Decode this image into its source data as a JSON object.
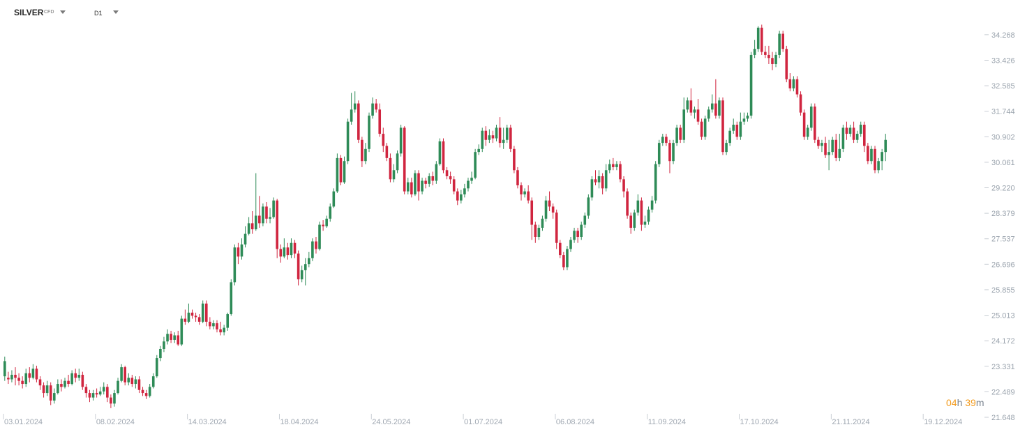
{
  "toolbar": {
    "symbol": "SILVER",
    "symbol_type": "CFD",
    "timeframe": "D1"
  },
  "timer": {
    "hours": "04",
    "hours_unit": "h",
    "minutes": "39",
    "minutes_unit": "m"
  },
  "colors": {
    "up": "#2e8b57",
    "down": "#d0253f",
    "axis_text": "#9aa3ad",
    "timer": "#f29a1c"
  },
  "chart_data": {
    "type": "candlestick",
    "timeframe": "D1",
    "ylim": [
      21.648,
      35.0
    ],
    "y_ticks": [
      "34.268",
      "33.426",
      "32.585",
      "31.744",
      "30.902",
      "30.061",
      "29.220",
      "28.379",
      "27.537",
      "26.696",
      "25.855",
      "25.013",
      "24.172",
      "23.331",
      "22.489",
      "21.648"
    ],
    "x_ticks": [
      "03.01.2024",
      "08.02.2024",
      "14.03.2024",
      "18.04.2024",
      "24.05.2024",
      "01.07.2024",
      "06.08.2024",
      "11.09.2024",
      "17.10.2024",
      "21.11.2024",
      "19.12.2024"
    ],
    "x_tick_positions": [
      0,
      26,
      52,
      78,
      104,
      130,
      156,
      182,
      208,
      234,
      260
    ],
    "candles": [
      [
        23.0,
        23.5,
        22.85,
        23.65
      ],
      [
        22.95,
        22.9,
        22.75,
        23.15
      ],
      [
        22.9,
        23.05,
        22.8,
        23.2
      ],
      [
        23.05,
        22.95,
        22.7,
        23.3
      ],
      [
        22.95,
        22.85,
        22.7,
        23.1
      ],
      [
        22.85,
        22.75,
        22.6,
        23.0
      ],
      [
        22.75,
        23.1,
        22.65,
        23.25
      ],
      [
        23.1,
        22.95,
        22.8,
        23.3
      ],
      [
        22.95,
        23.25,
        22.9,
        23.4
      ],
      [
        23.25,
        22.9,
        22.8,
        23.35
      ],
      [
        22.9,
        22.7,
        22.55,
        23.0
      ],
      [
        22.7,
        22.45,
        22.3,
        22.8
      ],
      [
        22.45,
        22.7,
        22.35,
        22.85
      ],
      [
        22.7,
        22.2,
        22.05,
        22.8
      ],
      [
        22.2,
        22.45,
        22.1,
        22.6
      ],
      [
        22.45,
        22.75,
        22.4,
        22.9
      ],
      [
        22.75,
        22.65,
        22.5,
        22.9
      ],
      [
        22.65,
        22.85,
        22.6,
        22.95
      ],
      [
        22.85,
        22.75,
        22.65,
        23.05
      ],
      [
        22.75,
        23.1,
        22.7,
        23.2
      ],
      [
        23.1,
        22.95,
        22.8,
        23.25
      ],
      [
        22.95,
        23.05,
        22.85,
        23.25
      ],
      [
        23.05,
        22.65,
        22.55,
        23.15
      ],
      [
        22.65,
        22.45,
        22.3,
        22.75
      ],
      [
        22.45,
        22.3,
        22.15,
        22.55
      ],
      [
        22.3,
        22.45,
        22.2,
        22.55
      ],
      [
        22.45,
        22.4,
        22.3,
        22.6
      ],
      [
        22.4,
        22.5,
        22.35,
        22.65
      ],
      [
        22.5,
        22.65,
        22.4,
        22.8
      ],
      [
        22.65,
        22.3,
        22.15,
        22.75
      ],
      [
        22.3,
        22.1,
        21.95,
        22.4
      ],
      [
        22.1,
        22.45,
        22.0,
        22.55
      ],
      [
        22.45,
        22.85,
        22.4,
        22.95
      ],
      [
        22.85,
        23.3,
        22.8,
        23.4
      ],
      [
        23.3,
        22.8,
        22.7,
        23.35
      ],
      [
        22.8,
        22.95,
        22.7,
        23.1
      ],
      [
        22.95,
        22.75,
        22.65,
        23.05
      ],
      [
        22.75,
        22.9,
        22.6,
        23.0
      ],
      [
        22.9,
        22.55,
        22.45,
        23.0
      ],
      [
        22.55,
        22.45,
        22.35,
        22.65
      ],
      [
        22.45,
        22.35,
        22.25,
        22.55
      ],
      [
        22.35,
        22.65,
        22.3,
        22.75
      ],
      [
        22.65,
        23.0,
        22.6,
        23.1
      ],
      [
        23.0,
        23.6,
        22.95,
        23.7
      ],
      [
        23.6,
        23.9,
        23.5,
        24.0
      ],
      [
        23.9,
        24.15,
        23.8,
        24.3
      ],
      [
        24.15,
        24.4,
        24.05,
        24.55
      ],
      [
        24.4,
        24.2,
        24.1,
        24.5
      ],
      [
        24.2,
        24.35,
        24.1,
        24.45
      ],
      [
        24.35,
        24.05,
        24.0,
        24.5
      ],
      [
        24.05,
        24.9,
        24.0,
        25.0
      ],
      [
        24.9,
        24.8,
        24.7,
        25.2
      ],
      [
        24.8,
        25.1,
        24.75,
        25.4
      ],
      [
        25.1,
        25.0,
        24.9,
        25.2
      ],
      [
        25.0,
        24.95,
        24.8,
        25.1
      ],
      [
        24.95,
        24.8,
        24.7,
        25.05
      ],
      [
        24.8,
        25.4,
        24.75,
        25.5
      ],
      [
        25.4,
        24.8,
        24.65,
        25.5
      ],
      [
        24.8,
        24.65,
        24.55,
        24.95
      ],
      [
        24.65,
        24.75,
        24.55,
        24.85
      ],
      [
        24.75,
        24.55,
        24.45,
        24.85
      ],
      [
        24.55,
        24.45,
        24.35,
        24.8
      ],
      [
        24.45,
        24.6,
        24.35,
        24.7
      ],
      [
        24.6,
        25.05,
        24.5,
        25.1
      ],
      [
        25.05,
        26.1,
        25.0,
        26.2
      ],
      [
        26.1,
        27.25,
        26.0,
        27.35
      ],
      [
        27.25,
        26.95,
        26.7,
        27.4
      ],
      [
        26.95,
        27.35,
        26.85,
        27.55
      ],
      [
        27.35,
        27.7,
        27.25,
        27.95
      ],
      [
        27.7,
        28.05,
        27.65,
        28.25
      ],
      [
        28.05,
        27.85,
        27.7,
        28.45
      ],
      [
        27.85,
        28.3,
        27.8,
        29.7
      ],
      [
        28.3,
        28.05,
        27.9,
        28.95
      ],
      [
        28.05,
        28.6,
        27.95,
        28.7
      ],
      [
        28.6,
        28.2,
        28.05,
        28.75
      ],
      [
        28.2,
        28.25,
        28.05,
        28.55
      ],
      [
        28.25,
        28.8,
        28.2,
        28.9
      ],
      [
        28.8,
        27.2,
        26.9,
        28.85
      ],
      [
        27.2,
        26.95,
        26.75,
        27.35
      ],
      [
        26.95,
        27.25,
        26.9,
        27.55
      ],
      [
        27.25,
        27.0,
        26.85,
        27.4
      ],
      [
        27.0,
        27.4,
        26.9,
        27.55
      ],
      [
        27.4,
        27.05,
        26.9,
        27.5
      ],
      [
        27.05,
        26.2,
        26.0,
        27.15
      ],
      [
        26.2,
        26.5,
        26.1,
        26.65
      ],
      [
        26.5,
        26.7,
        26.0,
        26.9
      ],
      [
        26.7,
        26.9,
        26.6,
        27.1
      ],
      [
        26.9,
        27.45,
        26.8,
        27.55
      ],
      [
        27.45,
        27.2,
        27.05,
        27.6
      ],
      [
        27.2,
        28.0,
        27.15,
        28.1
      ],
      [
        28.0,
        27.95,
        27.8,
        28.15
      ],
      [
        27.95,
        28.2,
        27.9,
        28.3
      ],
      [
        28.2,
        28.6,
        28.1,
        28.7
      ],
      [
        28.6,
        29.1,
        28.55,
        29.2
      ],
      [
        29.1,
        30.2,
        29.05,
        30.35
      ],
      [
        30.2,
        29.4,
        29.3,
        30.3
      ],
      [
        29.4,
        30.1,
        29.35,
        30.25
      ],
      [
        30.1,
        31.4,
        30.0,
        31.5
      ],
      [
        31.4,
        31.8,
        31.3,
        32.35
      ],
      [
        31.8,
        32.0,
        31.7,
        32.4
      ],
      [
        32.0,
        30.8,
        30.7,
        32.1
      ],
      [
        30.8,
        30.1,
        29.9,
        30.9
      ],
      [
        30.1,
        30.5,
        30.0,
        30.7
      ],
      [
        30.5,
        31.6,
        30.4,
        31.7
      ],
      [
        31.6,
        32.0,
        31.5,
        32.2
      ],
      [
        32.0,
        31.8,
        31.7,
        32.15
      ],
      [
        31.8,
        31.0,
        30.9,
        32.0
      ],
      [
        31.0,
        30.6,
        30.4,
        31.2
      ],
      [
        30.6,
        30.2,
        30.1,
        30.7
      ],
      [
        30.2,
        29.5,
        29.4,
        30.35
      ],
      [
        29.5,
        29.8,
        29.4,
        30.0
      ],
      [
        29.8,
        30.35,
        29.7,
        30.45
      ],
      [
        30.35,
        31.2,
        30.25,
        31.3
      ],
      [
        31.2,
        29.1,
        29.0,
        31.25
      ],
      [
        29.1,
        29.4,
        29.0,
        29.55
      ],
      [
        29.4,
        29.0,
        28.9,
        29.55
      ],
      [
        29.0,
        29.7,
        28.95,
        29.8
      ],
      [
        29.7,
        29.1,
        28.8,
        29.8
      ],
      [
        29.1,
        29.45,
        29.0,
        29.55
      ],
      [
        29.45,
        29.35,
        29.2,
        29.55
      ],
      [
        29.35,
        29.6,
        29.25,
        29.7
      ],
      [
        29.6,
        29.45,
        29.3,
        29.75
      ],
      [
        29.45,
        30.0,
        29.35,
        30.1
      ],
      [
        30.0,
        30.75,
        29.95,
        30.85
      ],
      [
        30.75,
        29.8,
        29.7,
        30.85
      ],
      [
        29.8,
        29.6,
        29.5,
        29.9
      ],
      [
        29.6,
        29.5,
        29.35,
        29.75
      ],
      [
        29.5,
        29.1,
        29.0,
        29.6
      ],
      [
        29.1,
        28.8,
        28.65,
        29.2
      ],
      [
        28.8,
        29.0,
        28.7,
        29.15
      ],
      [
        29.0,
        29.2,
        28.9,
        29.35
      ],
      [
        29.2,
        29.45,
        29.1,
        29.55
      ],
      [
        29.45,
        29.55,
        29.35,
        29.75
      ],
      [
        29.55,
        30.4,
        29.5,
        30.5
      ],
      [
        30.4,
        30.5,
        30.3,
        30.65
      ],
      [
        30.5,
        31.1,
        30.4,
        31.2
      ],
      [
        31.1,
        30.8,
        30.6,
        31.25
      ],
      [
        30.8,
        30.95,
        30.7,
        31.15
      ],
      [
        30.95,
        30.85,
        30.7,
        31.1
      ],
      [
        30.85,
        31.2,
        30.75,
        31.3
      ],
      [
        31.2,
        30.7,
        30.55,
        31.55
      ],
      [
        30.7,
        30.8,
        30.5,
        31.2
      ],
      [
        30.8,
        31.2,
        30.7,
        31.3
      ],
      [
        31.2,
        30.5,
        30.4,
        31.3
      ],
      [
        30.5,
        29.8,
        29.7,
        30.6
      ],
      [
        29.8,
        29.3,
        29.2,
        29.9
      ],
      [
        29.3,
        29.0,
        28.8,
        29.4
      ],
      [
        29.0,
        29.1,
        28.9,
        29.2
      ],
      [
        29.1,
        28.8,
        28.7,
        29.3
      ],
      [
        28.8,
        28.0,
        27.5,
        28.9
      ],
      [
        28.0,
        27.6,
        27.4,
        28.1
      ],
      [
        27.6,
        27.9,
        27.5,
        28.0
      ],
      [
        27.9,
        28.2,
        27.8,
        28.3
      ],
      [
        28.2,
        28.8,
        28.1,
        28.95
      ],
      [
        28.8,
        28.6,
        28.45,
        29.1
      ],
      [
        28.6,
        28.4,
        28.2,
        28.7
      ],
      [
        28.4,
        27.4,
        27.2,
        28.5
      ],
      [
        27.4,
        27.0,
        26.9,
        27.5
      ],
      [
        27.0,
        26.6,
        26.5,
        27.1
      ],
      [
        26.6,
        27.2,
        26.5,
        27.3
      ],
      [
        27.2,
        27.5,
        27.1,
        27.6
      ],
      [
        27.5,
        27.8,
        27.4,
        27.9
      ],
      [
        27.8,
        27.6,
        27.4,
        27.9
      ],
      [
        27.6,
        28.0,
        27.5,
        28.1
      ],
      [
        28.0,
        28.3,
        27.9,
        28.4
      ],
      [
        28.3,
        28.9,
        28.2,
        29.0
      ],
      [
        28.9,
        29.5,
        28.8,
        29.6
      ],
      [
        29.5,
        29.4,
        29.3,
        29.8
      ],
      [
        29.4,
        29.6,
        29.2,
        29.8
      ],
      [
        29.6,
        29.2,
        29.0,
        29.7
      ],
      [
        29.2,
        29.8,
        29.1,
        30.0
      ],
      [
        29.8,
        30.0,
        29.7,
        30.15
      ],
      [
        30.0,
        29.9,
        29.8,
        30.2
      ],
      [
        29.9,
        30.0,
        29.8,
        30.1
      ],
      [
        30.0,
        29.5,
        29.4,
        30.1
      ],
      [
        29.5,
        29.1,
        28.9,
        29.6
      ],
      [
        29.1,
        28.3,
        28.2,
        29.2
      ],
      [
        28.3,
        27.9,
        27.7,
        28.4
      ],
      [
        27.9,
        28.4,
        27.8,
        28.5
      ],
      [
        28.4,
        28.8,
        28.3,
        29.0
      ],
      [
        28.8,
        28.0,
        27.8,
        28.9
      ],
      [
        28.0,
        28.1,
        27.9,
        28.3
      ],
      [
        28.1,
        28.5,
        28.0,
        28.6
      ],
      [
        28.5,
        28.8,
        28.4,
        28.95
      ],
      [
        28.8,
        30.0,
        28.7,
        30.1
      ],
      [
        30.0,
        30.7,
        29.9,
        30.8
      ],
      [
        30.7,
        30.9,
        30.6,
        31.0
      ],
      [
        30.9,
        30.7,
        30.6,
        31.0
      ],
      [
        30.7,
        30.1,
        29.7,
        30.8
      ],
      [
        30.1,
        30.7,
        30.0,
        30.8
      ],
      [
        30.7,
        31.2,
        30.6,
        31.3
      ],
      [
        31.2,
        30.8,
        30.7,
        31.3
      ],
      [
        30.8,
        31.8,
        30.7,
        32.2
      ],
      [
        31.8,
        32.1,
        31.7,
        32.2
      ],
      [
        32.1,
        31.7,
        31.6,
        32.5
      ],
      [
        31.7,
        31.8,
        31.5,
        31.9
      ],
      [
        31.8,
        31.4,
        31.3,
        32.15
      ],
      [
        31.4,
        30.9,
        30.8,
        31.5
      ],
      [
        30.9,
        31.5,
        30.8,
        31.6
      ],
      [
        31.5,
        31.8,
        31.4,
        31.9
      ],
      [
        31.8,
        32.0,
        31.7,
        32.3
      ],
      [
        32.0,
        31.6,
        31.5,
        32.8
      ],
      [
        31.6,
        32.1,
        31.5,
        32.2
      ],
      [
        32.1,
        30.4,
        30.3,
        32.2
      ],
      [
        30.4,
        30.7,
        30.3,
        30.8
      ],
      [
        30.7,
        31.1,
        30.6,
        31.2
      ],
      [
        31.1,
        31.3,
        31.0,
        31.5
      ],
      [
        31.3,
        30.9,
        30.8,
        31.4
      ],
      [
        30.9,
        31.4,
        30.8,
        31.7
      ],
      [
        31.4,
        31.5,
        31.3,
        31.7
      ],
      [
        31.5,
        31.6,
        31.4,
        31.7
      ],
      [
        31.6,
        33.6,
        31.5,
        33.7
      ],
      [
        33.6,
        33.8,
        33.5,
        34.1
      ],
      [
        33.8,
        34.5,
        33.7,
        34.55
      ],
      [
        34.5,
        33.7,
        33.6,
        34.6
      ],
      [
        33.7,
        33.6,
        33.5,
        33.9
      ],
      [
        33.6,
        33.5,
        33.3,
        33.9
      ],
      [
        33.5,
        33.3,
        33.1,
        33.7
      ],
      [
        33.3,
        33.6,
        33.2,
        33.7
      ],
      [
        33.6,
        34.3,
        33.5,
        34.4
      ],
      [
        34.3,
        33.8,
        33.7,
        34.4
      ],
      [
        33.8,
        32.8,
        32.7,
        33.9
      ],
      [
        32.8,
        32.5,
        32.4,
        33.0
      ],
      [
        32.5,
        32.8,
        32.4,
        32.9
      ],
      [
        32.8,
        32.3,
        32.2,
        32.9
      ],
      [
        32.3,
        31.7,
        31.6,
        32.4
      ],
      [
        31.7,
        30.9,
        30.8,
        31.8
      ],
      [
        30.9,
        31.2,
        30.8,
        31.3
      ],
      [
        31.2,
        31.9,
        31.1,
        32.0
      ],
      [
        31.9,
        30.8,
        30.7,
        32.0
      ],
      [
        30.8,
        30.6,
        30.5,
        30.9
      ],
      [
        30.6,
        30.7,
        30.4,
        30.8
      ],
      [
        30.7,
        30.3,
        30.2,
        30.9
      ],
      [
        30.3,
        30.4,
        29.8,
        30.8
      ],
      [
        30.4,
        30.8,
        30.3,
        30.9
      ],
      [
        30.8,
        30.2,
        30.1,
        31.0
      ],
      [
        30.2,
        30.5,
        30.1,
        31.0
      ],
      [
        30.5,
        31.2,
        30.4,
        31.3
      ],
      [
        31.2,
        31.0,
        30.8,
        31.4
      ],
      [
        31.0,
        31.2,
        30.9,
        31.3
      ],
      [
        31.2,
        30.8,
        30.7,
        31.4
      ],
      [
        30.8,
        31.0,
        30.7,
        31.1
      ],
      [
        31.0,
        31.3,
        30.9,
        31.4
      ],
      [
        31.3,
        30.6,
        30.4,
        31.4
      ],
      [
        30.6,
        30.1,
        30.0,
        30.7
      ],
      [
        30.1,
        30.5,
        30.0,
        30.6
      ],
      [
        30.5,
        29.8,
        29.7,
        30.6
      ],
      [
        29.8,
        30.1,
        29.7,
        30.2
      ],
      [
        30.1,
        30.4,
        29.8,
        30.5
      ],
      [
        30.4,
        30.8,
        30.1,
        31.0
      ]
    ]
  }
}
